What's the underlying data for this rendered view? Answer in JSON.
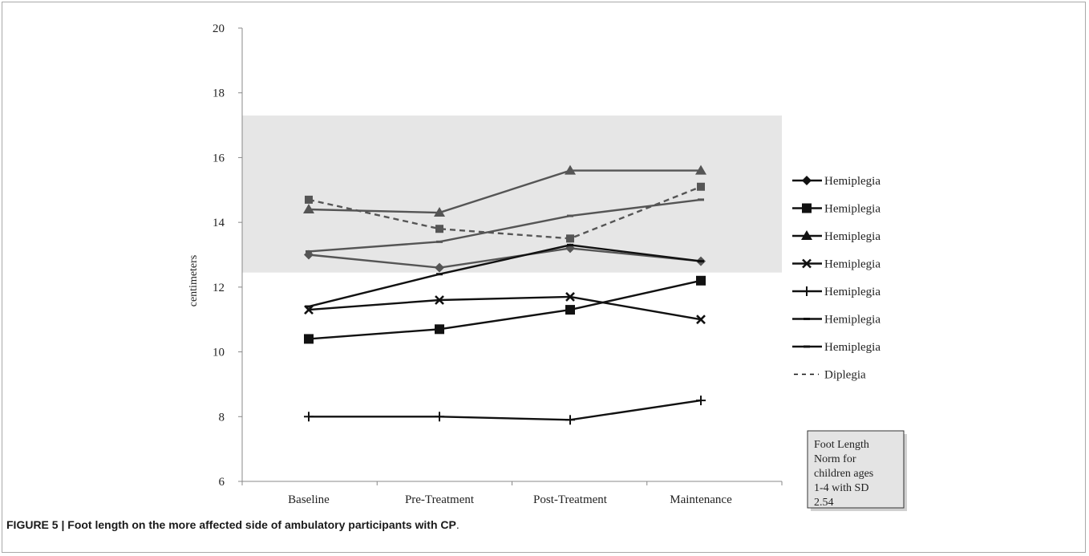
{
  "chart_data": {
    "type": "line",
    "title": "",
    "xlabel": "",
    "ylabel": "centimeters",
    "categories": [
      "Baseline",
      "Pre-Treatment",
      "Post-Treatment",
      "Maintenance"
    ],
    "ylim": [
      6,
      20
    ],
    "yticks": [
      6,
      8,
      10,
      12,
      14,
      16,
      18,
      20
    ],
    "grid": false,
    "legend_position": "right",
    "shaded_band": {
      "y_from": 12.45,
      "y_to": 17.3,
      "label": "Foot Length Norm for children ages 1-4 with SD 2.54",
      "color": "#e6e6e6"
    },
    "series": [
      {
        "name": "Hemiplegia",
        "marker": "diamond",
        "color": "#555555",
        "dash": false,
        "values": [
          13.0,
          12.6,
          13.2,
          12.8
        ]
      },
      {
        "name": "Hemiplegia",
        "marker": "square",
        "color": "#111111",
        "dash": false,
        "values": [
          10.4,
          10.7,
          11.3,
          12.2
        ]
      },
      {
        "name": "Hemiplegia",
        "marker": "triangle",
        "color": "#555555",
        "dash": false,
        "values": [
          14.4,
          14.3,
          15.6,
          15.6
        ]
      },
      {
        "name": "Hemiplegia",
        "marker": "x",
        "color": "#111111",
        "dash": false,
        "values": [
          11.3,
          11.6,
          11.7,
          11.0
        ]
      },
      {
        "name": "Hemiplegia",
        "marker": "plus",
        "color": "#111111",
        "dash": false,
        "values": [
          8.0,
          8.0,
          7.9,
          8.5
        ]
      },
      {
        "name": "Hemiplegia",
        "marker": "dash",
        "color": "#555555",
        "dash": false,
        "values": [
          13.1,
          13.4,
          14.2,
          14.7
        ]
      },
      {
        "name": "Hemiplegia",
        "marker": "dash",
        "color": "#111111",
        "dash": false,
        "values": [
          11.4,
          12.4,
          13.3,
          12.8
        ]
      },
      {
        "name": "Diplegia",
        "marker": "square-small",
        "color": "#555555",
        "dash": true,
        "values": [
          14.7,
          13.8,
          13.5,
          15.1
        ]
      }
    ],
    "legend_note": "Foot Length Norm for children ages 1-4 with SD 2.54"
  },
  "caption": {
    "label": "FIGURE 5 | Foot length on the more affected side of ambulatory participants with CP",
    "period": "."
  }
}
